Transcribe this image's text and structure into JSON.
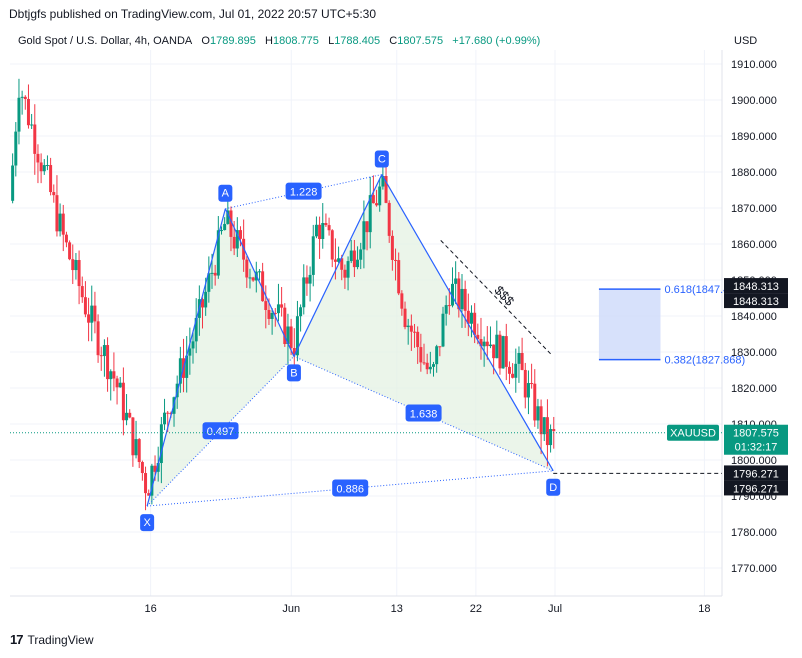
{
  "header": {
    "published_text": "Dbtjgfs published on TradingView.com, Jul 01, 2022 20:57 UTC+5:30"
  },
  "legend": {
    "symbol": "Gold Spot / U.S. Dollar, 4h, OANDA",
    "open_label": "O",
    "open": "1789.895",
    "high_label": "H",
    "high": "1808.775",
    "low_label": "L",
    "low": "1788.405",
    "close_label": "C",
    "close": "1807.575",
    "change": "+17.680 (+0.99%)"
  },
  "currency": "USD",
  "footer": {
    "brand": "TradingView"
  },
  "colors": {
    "up": "#089981",
    "down": "#f23645",
    "pattern": "#2962ff",
    "fill": "#e4f2e3",
    "zone": "#cdd9fa",
    "label_bg": "#2962ff"
  },
  "chart_data": {
    "type": "candlestick",
    "ylim": [
      1765,
      1912
    ],
    "yticks": [
      "1770.000",
      "1780.000",
      "1790.000",
      "1800.000",
      "1810.000",
      "1820.000",
      "1830.000",
      "1840.000",
      "1850.000",
      "1860.000",
      "1870.000",
      "1880.000",
      "1890.000",
      "1900.000",
      "1910.000"
    ],
    "xticks": [
      {
        "label": "16",
        "t": 16
      },
      {
        "label": "Jun",
        "t": 32
      },
      {
        "label": "13",
        "t": 44
      },
      {
        "label": "22",
        "t": 53
      },
      {
        "label": "Jul",
        "t": 62
      },
      {
        "label": "18",
        "t": 79
      }
    ],
    "xlim": [
      0,
      81
    ],
    "harmonic_points": [
      {
        "label": "X",
        "t": 15.6,
        "price": 1787.2
      },
      {
        "label": "A",
        "t": 24.5,
        "price": 1869.8
      },
      {
        "label": "B",
        "t": 32.3,
        "price": 1828.8
      },
      {
        "label": "C",
        "t": 42.3,
        "price": 1879.3
      },
      {
        "label": "D",
        "t": 61.8,
        "price": 1797.0
      }
    ],
    "ratios": [
      {
        "label": "0.497",
        "from": "X",
        "to": "B"
      },
      {
        "label": "1.228",
        "from": "A",
        "to": "C"
      },
      {
        "label": "1.638",
        "from": "B",
        "to": "D"
      },
      {
        "label": "0.886",
        "from": "X",
        "to": "D"
      }
    ],
    "trendline": {
      "label": "$$$",
      "t1": 49,
      "p1": 1861,
      "t2": 61.5,
      "p2": 1829.5
    },
    "fib_levels": [
      {
        "label": "0.618(1847.463)",
        "price": 1847.463
      },
      {
        "label": "0.382(1827.868)",
        "price": 1827.868
      }
    ],
    "fib_zone": {
      "t1": 67,
      "t2": 74
    },
    "price_labels": [
      {
        "text": "1848.313",
        "price": 1848.313,
        "style": "black"
      },
      {
        "text": "1848.313",
        "price": 1848.313,
        "style": "black-stack"
      },
      {
        "text": "1796.271",
        "price": 1796.271,
        "style": "black"
      },
      {
        "text": "1796.271",
        "price": 1796.271,
        "style": "black-stack"
      }
    ],
    "current": {
      "symbol": "XAUUSD",
      "price": "1807.575",
      "price_value": 1807.575,
      "countdown": "01:32:17"
    },
    "support_line": {
      "price": 1796.271,
      "t": 61.8
    },
    "candles": []
  }
}
